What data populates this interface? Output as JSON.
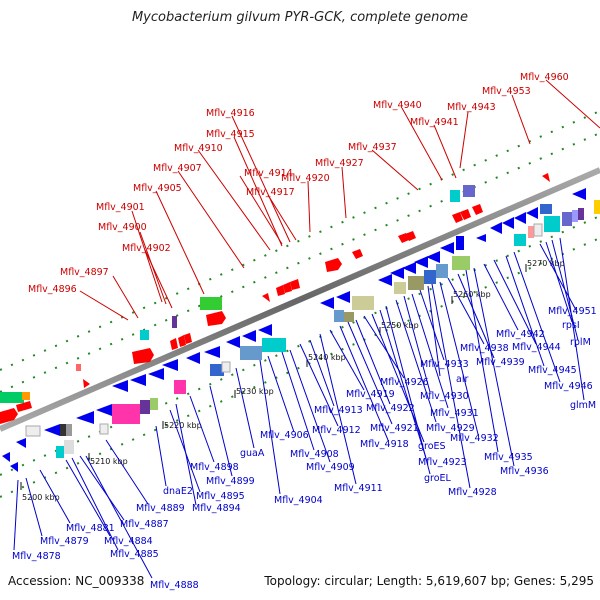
{
  "title": "Mycobacterium gilvum PYR-GCK, complete genome",
  "accession": "Accession: NC_009338",
  "summary": "Topology: circular; Length: 5,619,607 bp; Genes: 5,295",
  "colors": {
    "forward_label": "#cc0000",
    "reverse_label": "#0000cc",
    "backbone": "#888888",
    "dots": "#228822"
  },
  "ticks": [
    "5200 kbp",
    "5210 kbp",
    "5220 kbp",
    "5230 kbp",
    "5240 kbp",
    "5250 kbp",
    "5260 kbp",
    "5270 kbp"
  ],
  "forward_genes": [
    "Mflv_4896",
    "Mflv_4897",
    "Mflv_4902",
    "Mflv_4900",
    "Mflv_4901",
    "Mflv_4905",
    "Mflv_4907",
    "Mflv_4910",
    "Mflv_4915",
    "Mflv_4916",
    "Mflv_4914",
    "Mflv_4917",
    "Mflv_4920",
    "Mflv_4927",
    "Mflv_4937",
    "Mflv_4940",
    "Mflv_4941",
    "Mflv_4943",
    "Mflv_4953",
    "Mflv_4960"
  ],
  "reverse_genes": [
    "Mflv_4878",
    "Mflv_4879",
    "Mflv_4881",
    "Mflv_4884",
    "Mflv_4885",
    "Mflv_4887",
    "Mflv_4888",
    "Mflv_4889",
    "dnaE2",
    "Mflv_4895",
    "Mflv_4894",
    "Mflv_4898",
    "Mflv_4899",
    "guaA",
    "Mflv_4904",
    "Mflv_4906",
    "Mflv_4908",
    "Mflv_4909",
    "Mflv_4912",
    "Mflv_4913",
    "Mflv_4911",
    "Mflv_4919",
    "Mflv_4918",
    "Mflv_4921",
    "Mflv_4922",
    "Mflv_4926",
    "groES",
    "Mflv_4923",
    "groEL",
    "Mflv_4929",
    "Mflv_4930",
    "Mflv_4931",
    "Mflv_4933",
    "alr",
    "Mflv_4928",
    "Mflv_4932",
    "Mflv_4938",
    "Mflv_4939",
    "Mflv_4935",
    "Mflv_4936",
    "Mflv_4942",
    "Mflv_4944",
    "Mflv_4945",
    "Mflv_4946",
    "Mflv_4951",
    "rpsI",
    "rplM",
    "glmM"
  ]
}
